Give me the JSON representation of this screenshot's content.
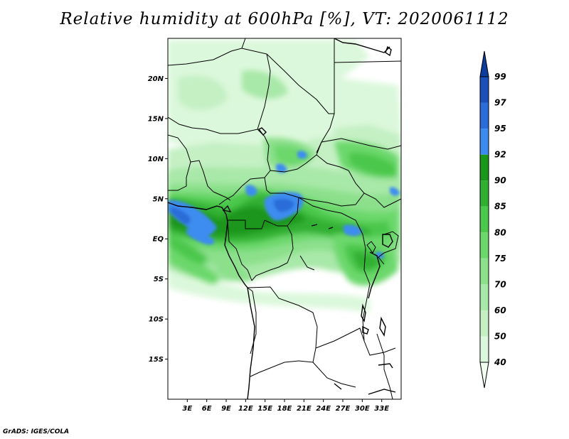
{
  "title": "Relative humidity at 600hPa [%], VT: 2020061112",
  "credit": "GrADS: IGES/COLA",
  "map": {
    "lon_range": [
      0,
      36
    ],
    "lat_range": [
      -20,
      25
    ],
    "lat_ticks": [
      {
        "value": 20,
        "label": "20N"
      },
      {
        "value": 15,
        "label": "15N"
      },
      {
        "value": 10,
        "label": "10N"
      },
      {
        "value": 5,
        "label": "5N"
      },
      {
        "value": 0,
        "label": "EQ"
      },
      {
        "value": -5,
        "label": "5S"
      },
      {
        "value": -10,
        "label": "10S"
      },
      {
        "value": -15,
        "label": "15S"
      }
    ],
    "lon_ticks": [
      {
        "value": 3,
        "label": "3E"
      },
      {
        "value": 6,
        "label": "6E"
      },
      {
        "value": 9,
        "label": "9E"
      },
      {
        "value": 12,
        "label": "12E"
      },
      {
        "value": 15,
        "label": "15E"
      },
      {
        "value": 18,
        "label": "18E"
      },
      {
        "value": 21,
        "label": "21E"
      },
      {
        "value": 24,
        "label": "24E"
      },
      {
        "value": 27,
        "label": "27E"
      },
      {
        "value": 30,
        "label": "30E"
      },
      {
        "value": 33,
        "label": "33E"
      }
    ]
  },
  "colorbar": {
    "levels": [
      "40",
      "50",
      "60",
      "70",
      "75",
      "80",
      "85",
      "90",
      "92",
      "95",
      "97",
      "99"
    ],
    "colors": [
      "#f0fff0",
      "#dcf8dc",
      "#c4f0c4",
      "#a8e8a8",
      "#8ce08c",
      "#6cd86c",
      "#4cc84c",
      "#30b030",
      "#1a961a",
      "#3c8cf0",
      "#2a6cd8",
      "#1a50b8",
      "#0c3c9c"
    ]
  },
  "colors": {
    "border": "#000000",
    "coast": "#000000",
    "moist_blue": "#3c8cf0"
  }
}
